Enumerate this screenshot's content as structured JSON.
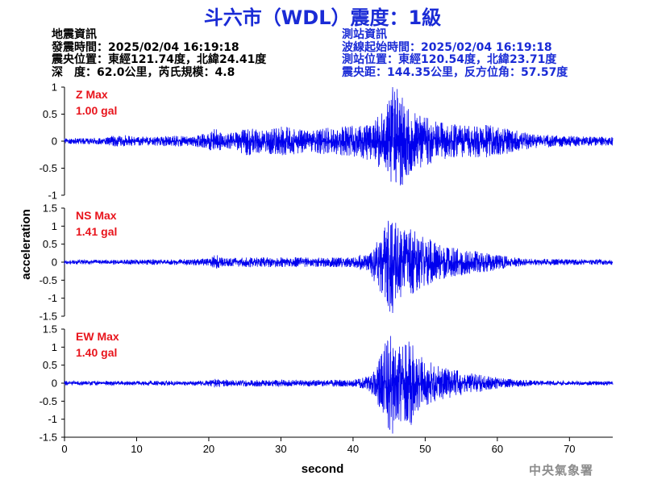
{
  "header": {
    "title": "斗六市（WDL）震度：1級"
  },
  "earthquake_info": {
    "heading": "地震資訊",
    "origin_time": "發震時間：2025/02/04 16:19:18",
    "epicenter": "震央位置：東經121.74度，北緯24.41度",
    "depth_magnitude": "深　度：62.0公里，芮氏規模：4.8"
  },
  "station_info": {
    "heading": "測站資訊",
    "wave_start": "波線起始時間：2025/02/04 16:19:18",
    "station_location": "測站位置：東經120.54度，北緯23.71度",
    "distance_azimuth": "震央距：144.35公里，反方位角：57.57度"
  },
  "agency": "中央氣象署",
  "colors": {
    "title": "#1a2bd6",
    "station_info": "#1a2bd6",
    "trace": "#0000ee",
    "max_label": "#e8141c",
    "agency": "#8c8c8c"
  },
  "chart_data": {
    "type": "line",
    "xlabel": "second",
    "ylabel": "acceleration",
    "xlim": [
      0,
      76
    ],
    "x_ticks": [
      "0",
      "10",
      "20",
      "30",
      "40",
      "50",
      "60",
      "70"
    ],
    "panels": [
      {
        "name": "Z",
        "label_line1": "Z Max",
        "label_line2": "1.00 gal",
        "max": 1.0,
        "ylim": [
          -1,
          1
        ],
        "y_ticks": [
          "1",
          "0.5",
          "0",
          "-0.5",
          "-1"
        ],
        "envelope": [
          [
            0,
            0.05
          ],
          [
            5,
            0.06
          ],
          [
            8,
            0.12
          ],
          [
            10,
            0.08
          ],
          [
            15,
            0.1
          ],
          [
            18,
            0.09
          ],
          [
            20,
            0.18
          ],
          [
            21,
            0.25
          ],
          [
            22,
            0.12
          ],
          [
            24,
            0.18
          ],
          [
            25,
            0.28
          ],
          [
            27,
            0.22
          ],
          [
            30,
            0.28
          ],
          [
            33,
            0.22
          ],
          [
            36,
            0.24
          ],
          [
            39,
            0.28
          ],
          [
            41,
            0.3
          ],
          [
            43,
            0.4
          ],
          [
            44,
            0.6
          ],
          [
            45,
            0.78
          ],
          [
            46,
            1.0
          ],
          [
            47,
            0.78
          ],
          [
            48,
            0.58
          ],
          [
            49,
            0.55
          ],
          [
            50,
            0.45
          ],
          [
            53,
            0.32
          ],
          [
            56,
            0.3
          ],
          [
            59,
            0.3
          ],
          [
            61,
            0.25
          ],
          [
            65,
            0.13
          ],
          [
            70,
            0.1
          ],
          [
            76,
            0.08
          ]
        ]
      },
      {
        "name": "NS",
        "label_line1": "NS Max",
        "label_line2": "1.41 gal",
        "max": 1.41,
        "ylim": [
          -1.5,
          1.5
        ],
        "y_ticks": [
          "1.5",
          "1",
          "0.5",
          "0",
          "-0.5",
          "-1",
          "-1.5"
        ],
        "envelope": [
          [
            0,
            0.06
          ],
          [
            10,
            0.07
          ],
          [
            18,
            0.09
          ],
          [
            20,
            0.1
          ],
          [
            21,
            0.22
          ],
          [
            22,
            0.11
          ],
          [
            25,
            0.14
          ],
          [
            30,
            0.14
          ],
          [
            35,
            0.13
          ],
          [
            40,
            0.15
          ],
          [
            42,
            0.28
          ],
          [
            43,
            0.55
          ],
          [
            44,
            0.9
          ],
          [
            45,
            1.41
          ],
          [
            46,
            1.1
          ],
          [
            47,
            0.9
          ],
          [
            48,
            1.0
          ],
          [
            49,
            0.8
          ],
          [
            50,
            0.7
          ],
          [
            52,
            0.5
          ],
          [
            54,
            0.4
          ],
          [
            56,
            0.35
          ],
          [
            58,
            0.28
          ],
          [
            60,
            0.22
          ],
          [
            62,
            0.14
          ],
          [
            65,
            0.09
          ],
          [
            70,
            0.08
          ],
          [
            76,
            0.07
          ]
        ]
      },
      {
        "name": "EW",
        "label_line1": "EW Max",
        "label_line2": "1.40 gal",
        "max": 1.4,
        "ylim": [
          -1.5,
          1.5
        ],
        "y_ticks": [
          "1.5",
          "1",
          "0.5",
          "0",
          "-0.5",
          "-1",
          "-1.5"
        ],
        "envelope": [
          [
            0,
            0.06
          ],
          [
            10,
            0.06
          ],
          [
            18,
            0.07
          ],
          [
            20,
            0.08
          ],
          [
            21,
            0.13
          ],
          [
            22,
            0.09
          ],
          [
            25,
            0.1
          ],
          [
            30,
            0.09
          ],
          [
            35,
            0.09
          ],
          [
            40,
            0.1
          ],
          [
            42,
            0.18
          ],
          [
            43,
            0.45
          ],
          [
            44,
            0.85
          ],
          [
            45,
            1.4
          ],
          [
            46,
            1.0
          ],
          [
            47,
            1.1
          ],
          [
            48,
            1.2
          ],
          [
            49,
            0.85
          ],
          [
            50,
            0.65
          ],
          [
            52,
            0.5
          ],
          [
            54,
            0.4
          ],
          [
            56,
            0.3
          ],
          [
            58,
            0.22
          ],
          [
            60,
            0.15
          ],
          [
            63,
            0.1
          ],
          [
            66,
            0.07
          ],
          [
            70,
            0.06
          ],
          [
            76,
            0.06
          ]
        ]
      }
    ]
  }
}
